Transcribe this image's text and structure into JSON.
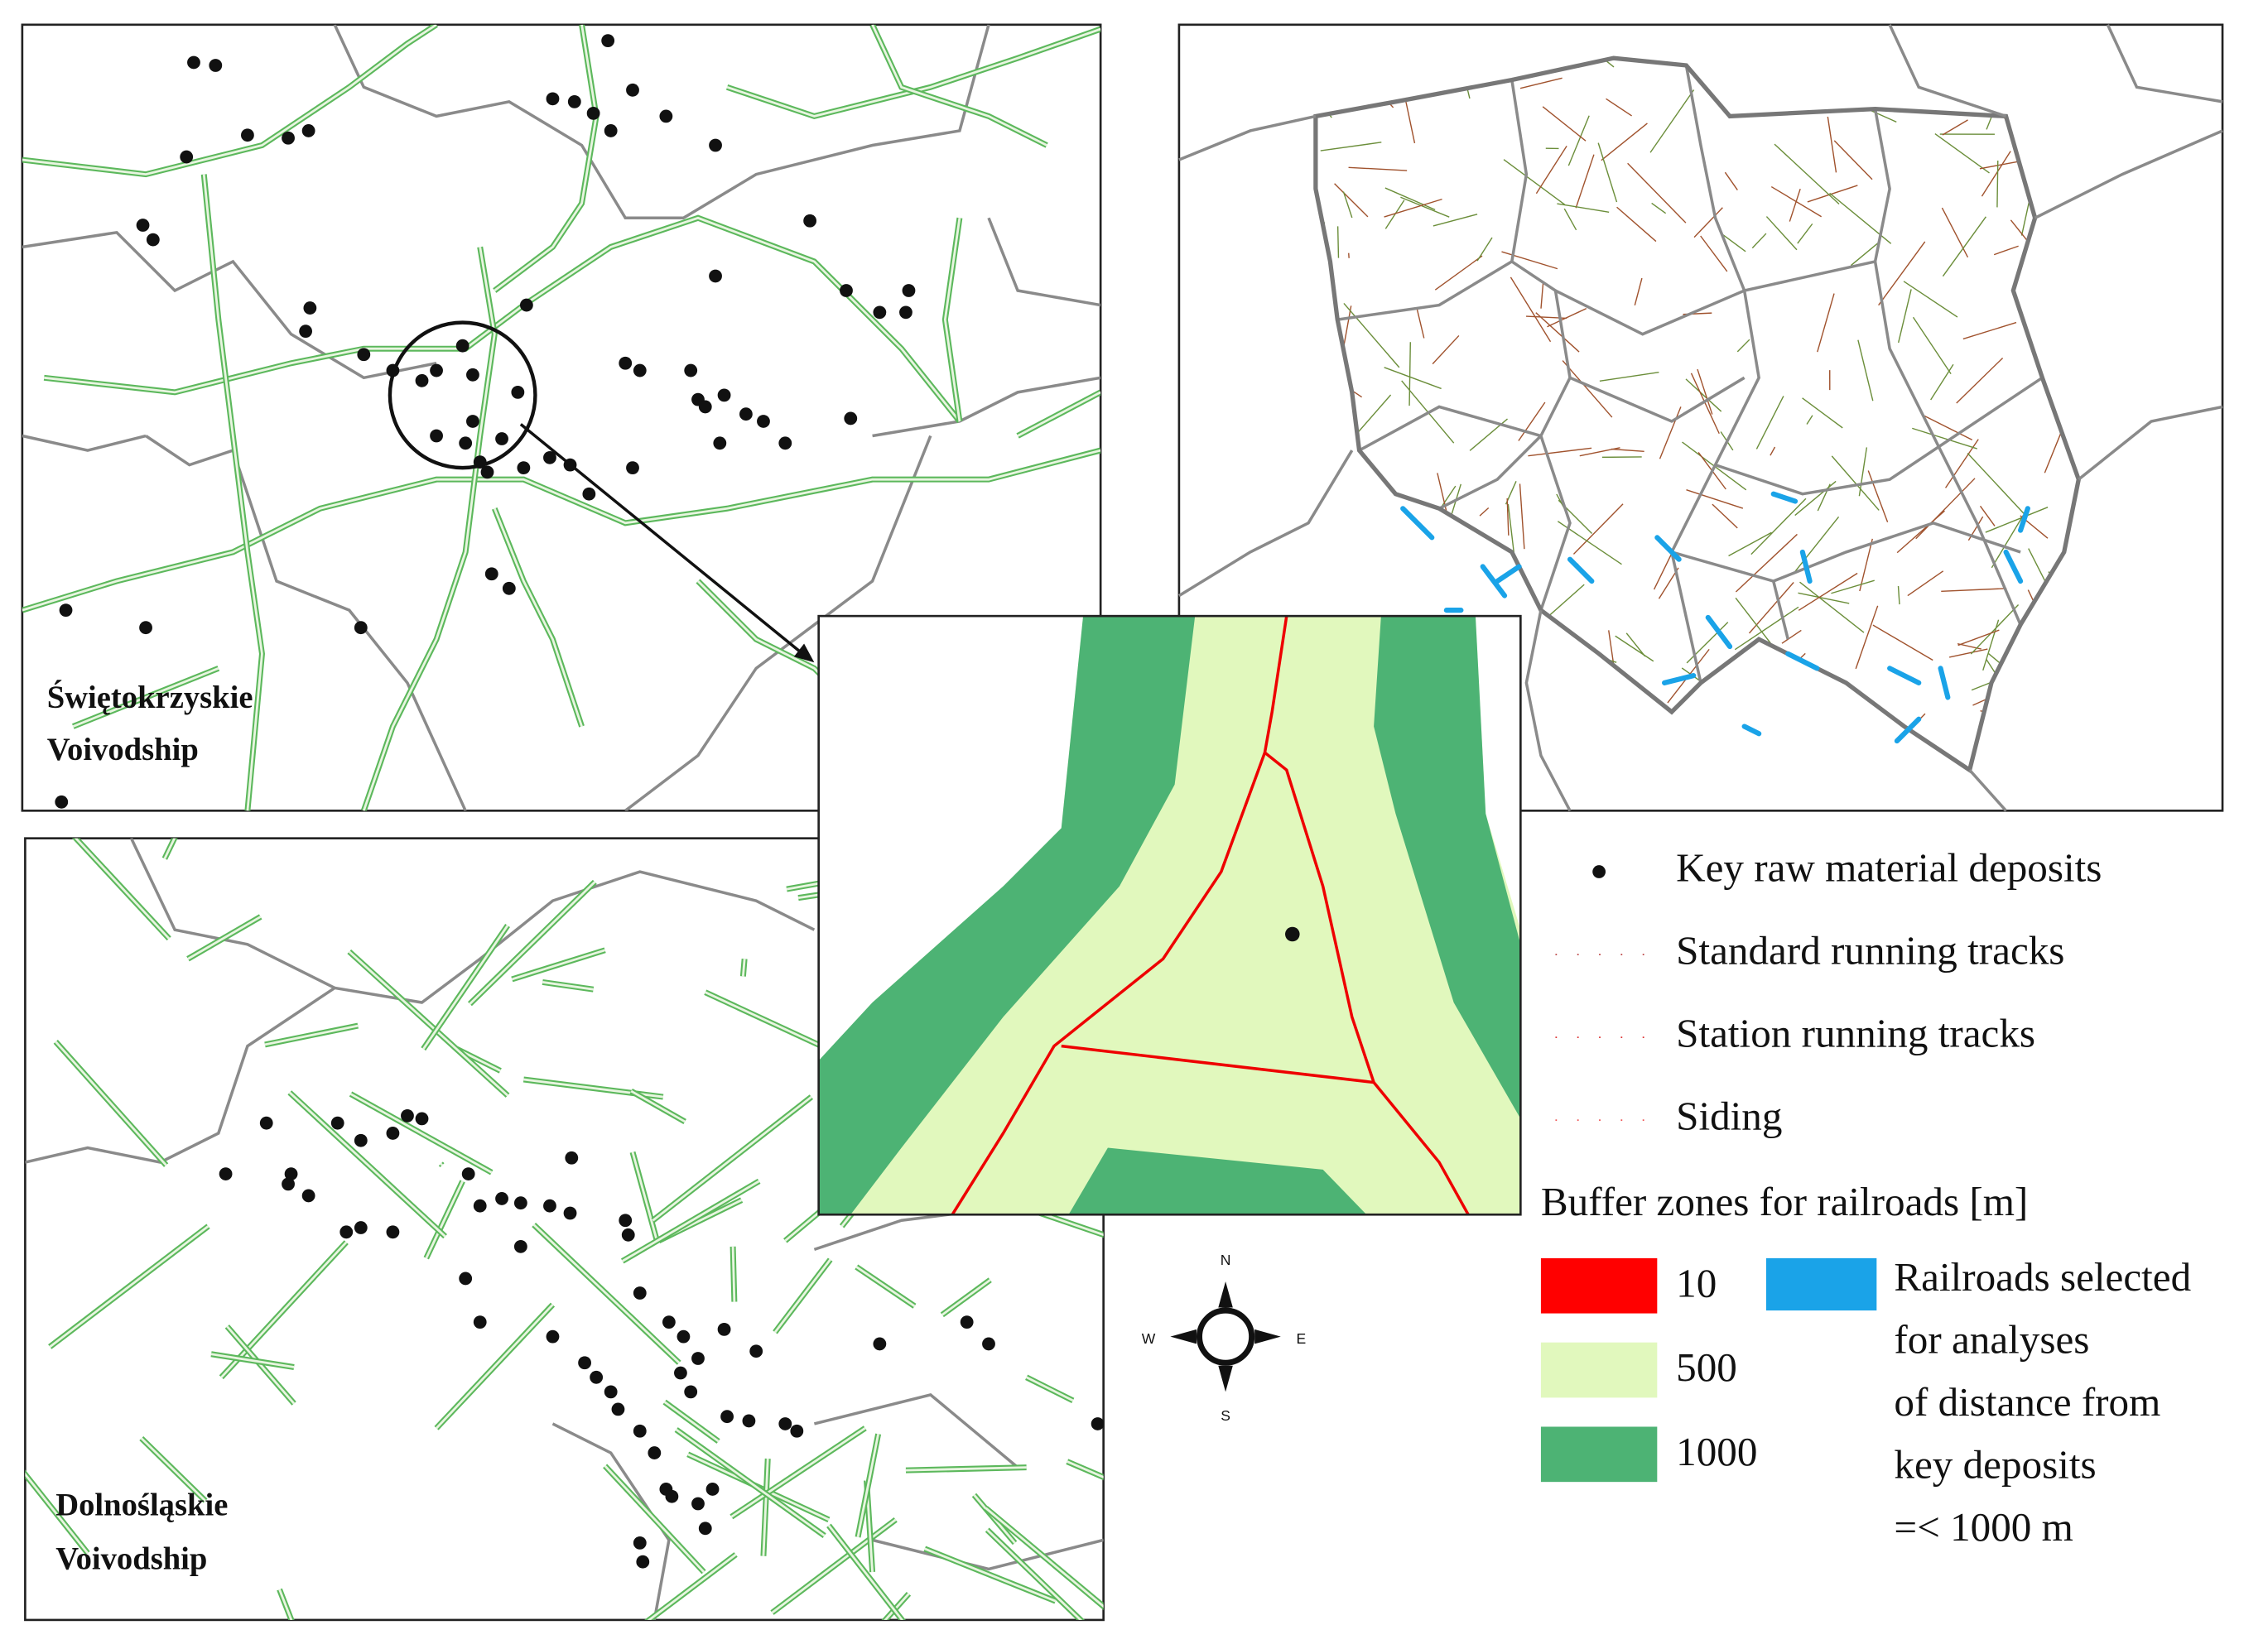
{
  "panels": {
    "swietokrzyskie": {
      "label": [
        "Świętokrzyskie",
        "Voivodship"
      ]
    },
    "dolnoslaskie": {
      "label": [
        "Dolnośląskie",
        "Voivodship"
      ]
    }
  },
  "compass": [
    "N",
    "E",
    "S",
    "W"
  ],
  "legend": {
    "items": [
      {
        "label": "Key raw material deposits"
      },
      {
        "label": "Standard running tracks"
      },
      {
        "label": "Station running tracks"
      },
      {
        "label": "Siding"
      }
    ],
    "buffer_title": "Buffer zones for railroads [m]",
    "buffers": [
      {
        "label": "10",
        "color": "#ff0000"
      },
      {
        "label": "500",
        "color": "#e1f8bd"
      },
      {
        "label": "1000",
        "color": "#4db374"
      }
    ],
    "selected": {
      "label": [
        "Railroads selected",
        "for analyses",
        "of distance from",
        "key deposits",
        "=< 1000 m"
      ],
      "color": "#1aa3e8"
    }
  }
}
